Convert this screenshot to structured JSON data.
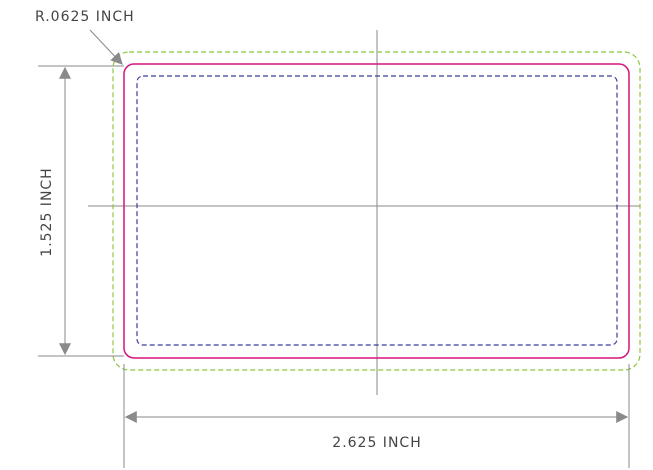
{
  "labels": {
    "radius": "R.0625 INCH",
    "height": "1.525 INCH",
    "width": "2.625 INCH"
  },
  "colors": {
    "dimension_lines": "#8a8a8a",
    "dimension_text": "#444444",
    "bleed_line": "#8dc63f",
    "trim_line": "#d6147b",
    "safe_line": "#3b3f9a",
    "center_lines": "#8a8a8a"
  }
}
